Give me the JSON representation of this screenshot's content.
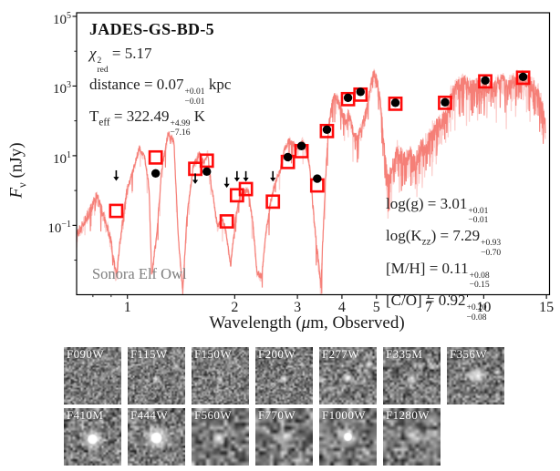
{
  "plot": {
    "title": "JADES-GS-BD-5",
    "model_label": "Sonora Elf Owl",
    "ylabel_parts": [
      {
        "t": "i",
        "s": "F"
      },
      {
        "t": "sub",
        "s": "ν"
      },
      {
        "t": "r",
        "s": " (nJy)"
      }
    ],
    "xlabel_parts": [
      {
        "t": "r",
        "s": "Wavelength ("
      },
      {
        "t": "i",
        "s": "μ"
      },
      {
        "t": "r",
        "s": "m, Observed)"
      }
    ],
    "left_lines": [
      [
        {
          "t": "i",
          "s": "χ"
        },
        {
          "t": "pm",
          "up": "2",
          "dn": "red"
        },
        {
          "t": "r",
          "s": " = 5.17"
        }
      ],
      [
        {
          "t": "r",
          "s": "distance = 0.07"
        },
        {
          "t": "pm",
          "up": "+0.01",
          "dn": "−0.01"
        },
        {
          "t": "r",
          "s": " kpc"
        }
      ],
      [
        {
          "t": "r",
          "s": "T"
        },
        {
          "t": "sub",
          "s": "eff"
        },
        {
          "t": "r",
          "s": " = 322.49"
        },
        {
          "t": "pm",
          "up": "+4.99",
          "dn": "−7.16"
        },
        {
          "t": "r",
          "s": " K"
        }
      ]
    ],
    "right_lines": [
      [
        {
          "t": "r",
          "s": "log(g) = 3.01"
        },
        {
          "t": "pm",
          "up": "+0.01",
          "dn": "−0.01"
        }
      ],
      [
        {
          "t": "r",
          "s": "log(K"
        },
        {
          "t": "sub",
          "s": "zz"
        },
        {
          "t": "r",
          "s": ") = 7.29"
        },
        {
          "t": "pm",
          "up": "+0.93",
          "dn": "−0.70"
        }
      ],
      [
        {
          "t": "r",
          "s": "[M/H] = 0.11"
        },
        {
          "t": "pm",
          "up": "+0.08",
          "dn": "−0.15"
        }
      ],
      [
        {
          "t": "r",
          "s": "[C/O] = 0.92"
        },
        {
          "t": "pm",
          "up": "+0.20",
          "dn": "−0.08"
        }
      ]
    ],
    "y_ticks": [
      {
        "exp": "5",
        "log": 5
      },
      {
        "exp": "3",
        "log": 3
      },
      {
        "exp": "1",
        "log": 1
      },
      {
        "exp": "−1",
        "log": -1
      }
    ]
  },
  "chart_data": {
    "type": "line",
    "title": "JADES-GS-BD-5",
    "xlabel": "Wavelength (μm, Observed)",
    "ylabel": "Fν (nJy)",
    "xscale": "log",
    "yscale": "log",
    "xlim": [
      0.72,
      15.3
    ],
    "ylim": [
      0.00102,
      127000
    ],
    "grid": false,
    "legend": false,
    "x_ticks": [
      {
        "v": 1,
        "label": "1"
      },
      {
        "v": 2,
        "label": "2"
      },
      {
        "v": 3,
        "label": "3"
      },
      {
        "v": 4,
        "label": "4"
      },
      {
        "v": 5,
        "label": "5"
      },
      {
        "v": 7,
        "label": "7"
      },
      {
        "v": 10,
        "label": "10"
      },
      {
        "v": 15,
        "label": "15"
      }
    ],
    "x_minor_ticks": [
      0.8,
      0.9,
      6,
      8,
      9
    ],
    "y_decades": [
      5,
      4,
      3,
      2,
      1,
      0,
      -1,
      -2
    ],
    "series": [
      {
        "name": "Sonora Elf Owl model spectrum",
        "kind": "line",
        "color": "#f4756e",
        "points": [
          [
            0.72,
            0.06
          ],
          [
            0.77,
            0.21
          ],
          [
            0.82,
            0.82
          ],
          [
            0.87,
            0.15
          ],
          [
            0.9,
            0.04
          ],
          [
            0.93,
            0.004
          ],
          [
            0.96,
            0.074
          ],
          [
            1.0,
            1.3
          ],
          [
            1.05,
            6.4
          ],
          [
            1.08,
            19
          ],
          [
            1.12,
            9.1
          ],
          [
            1.15,
            1.3
          ],
          [
            1.17,
            0.004
          ],
          [
            1.21,
            0.074
          ],
          [
            1.25,
            5.0
          ],
          [
            1.3,
            49
          ],
          [
            1.35,
            30
          ],
          [
            1.39,
            0.045
          ],
          [
            1.43,
            0.0014
          ],
          [
            1.47,
            0.21
          ],
          [
            1.53,
            5.6
          ],
          [
            1.59,
            12
          ],
          [
            1.64,
            7.2
          ],
          [
            1.68,
            13
          ],
          [
            1.72,
            1.5
          ],
          [
            1.79,
            0.1
          ],
          [
            1.84,
            0.18
          ],
          [
            1.89,
            0.074
          ],
          [
            1.95,
            0.008
          ],
          [
            2.01,
            0.18
          ],
          [
            2.07,
            0.77
          ],
          [
            2.13,
            1.0
          ],
          [
            2.18,
            1.2
          ],
          [
            2.25,
            0.13
          ],
          [
            2.31,
            0.005
          ],
          [
            2.38,
            0.0036
          ],
          [
            2.45,
            0.074
          ],
          [
            2.53,
            0.61
          ],
          [
            2.6,
            2.0
          ],
          [
            2.68,
            3.7
          ],
          [
            2.76,
            17
          ],
          [
            2.84,
            30
          ],
          [
            2.93,
            23
          ],
          [
            3.01,
            17
          ],
          [
            3.1,
            30
          ],
          [
            3.18,
            17
          ],
          [
            3.25,
            5.0
          ],
          [
            3.33,
            0.25
          ],
          [
            3.41,
            0.022
          ],
          [
            3.49,
            0.002
          ],
          [
            3.55,
            0.13
          ],
          [
            3.62,
            9.1
          ],
          [
            3.68,
            102
          ],
          [
            3.75,
            340
          ],
          [
            3.81,
            620
          ],
          [
            3.9,
            460
          ],
          [
            4.0,
            186
          ],
          [
            4.09,
            130
          ],
          [
            4.19,
            186
          ],
          [
            4.29,
            63
          ],
          [
            4.39,
            39
          ],
          [
            4.47,
            56
          ],
          [
            4.57,
            102
          ],
          [
            4.68,
            210
          ],
          [
            4.79,
            950
          ],
          [
            4.91,
            2980
          ],
          [
            5.03,
            1445
          ],
          [
            5.15,
            284
          ],
          [
            5.27,
            14
          ],
          [
            5.39,
            2.3
          ],
          [
            5.59,
            7.6
          ],
          [
            5.72,
            19
          ],
          [
            6.03,
            9.1
          ],
          [
            6.21,
            14
          ],
          [
            6.4,
            7.6
          ],
          [
            6.59,
            19
          ],
          [
            6.99,
            34
          ],
          [
            7.19,
            63
          ],
          [
            7.63,
            130
          ],
          [
            7.86,
            186
          ],
          [
            8.09,
            700
          ],
          [
            8.33,
            1135
          ],
          [
            8.58,
            1445
          ],
          [
            8.84,
            1630
          ],
          [
            9.16,
            1135
          ],
          [
            9.48,
            1535
          ],
          [
            9.83,
            1070
          ],
          [
            10.2,
            1445
          ],
          [
            10.5,
            1007
          ],
          [
            10.9,
            1445
          ],
          [
            11.3,
            1950
          ],
          [
            11.7,
            1280
          ],
          [
            12.1,
            1730
          ],
          [
            12.6,
            2340
          ],
          [
            13.0,
            1838
          ],
          [
            13.5,
            1535
          ],
          [
            14.0,
            1135
          ],
          [
            14.5,
            551
          ],
          [
            14.9,
            96
          ]
        ]
      },
      {
        "name": "Model photometry",
        "kind": "scatter",
        "marker": "open-square",
        "color": "#ff0a0a",
        "points": [
          [
            0.93,
            0.26
          ],
          [
            1.2,
            8.9
          ],
          [
            1.55,
            4.2
          ],
          [
            1.67,
            7.2
          ],
          [
            1.9,
            0.13
          ],
          [
            2.03,
            0.73
          ],
          [
            2.15,
            1.1
          ],
          [
            2.56,
            0.48
          ],
          [
            2.82,
            6.6
          ],
          [
            3.08,
            13.5
          ],
          [
            3.41,
            1.4
          ],
          [
            3.63,
            51
          ],
          [
            4.16,
            420
          ],
          [
            4.51,
            567
          ],
          [
            5.65,
            310
          ],
          [
            7.79,
            330
          ],
          [
            10.1,
            1360
          ],
          [
            12.9,
            1730
          ]
        ]
      },
      {
        "name": "Observed photometry",
        "kind": "scatter",
        "marker": "filled-circle",
        "color": "#000000",
        "points": [
          [
            1.2,
            3.1
          ],
          [
            1.67,
            3.5
          ],
          [
            2.82,
            9.1
          ],
          [
            3.08,
            19
          ],
          [
            3.41,
            2.2
          ],
          [
            3.63,
            56
          ],
          [
            4.16,
            459
          ],
          [
            4.51,
            679
          ],
          [
            5.65,
            330
          ],
          [
            7.79,
            340
          ],
          [
            10.1,
            1445
          ],
          [
            12.9,
            1838
          ]
        ]
      },
      {
        "name": "Upper limits",
        "kind": "scatter",
        "marker": "down-arrow",
        "color": "#000000",
        "points": [
          [
            0.93,
            1.9
          ],
          [
            1.55,
            1.55
          ],
          [
            1.9,
            1.2
          ],
          [
            2.03,
            1.8
          ],
          [
            2.15,
            1.8
          ],
          [
            2.56,
            1.8
          ]
        ]
      }
    ],
    "noise_regions": [
      {
        "upto": 1.0,
        "amp": 0.22,
        "p": 0.05,
        "depth": 0.6
      },
      {
        "upto": 3.3,
        "amp": 0.13,
        "p": 0.04,
        "depth": 0.7
      },
      {
        "upto": 3.95,
        "amp": 0.2,
        "p": 0.08,
        "depth": 0.9
      },
      {
        "upto": 5.2,
        "amp": 0.25,
        "p": 0.1,
        "depth": 0.7
      },
      {
        "upto": 7.5,
        "amp": 0.45,
        "p": 0.2,
        "depth": 0.8
      },
      {
        "upto": 16,
        "amp": 0.35,
        "p": 0.18,
        "depth": 0.9
      }
    ]
  },
  "cutouts": {
    "rows": [
      [
        {
          "label": "F090W",
          "grain": 34,
          "sources": [
            [
              0.88,
              0.4,
              1.6,
              0.5
            ],
            [
              0.13,
              0.78,
              1.4,
              0.35
            ]
          ]
        },
        {
          "label": "F115W",
          "grain": 34,
          "sources": [
            [
              0.5,
              0.56,
              2.0,
              0.85
            ],
            [
              0.84,
              0.33,
              1.7,
              0.75
            ],
            [
              0.22,
              0.6,
              1.3,
              0.3
            ]
          ]
        },
        {
          "label": "F150W",
          "grain": 34,
          "sources": [
            [
              0.49,
              0.56,
              2.1,
              0.8
            ],
            [
              0.82,
              0.33,
              1.7,
              0.6
            ]
          ]
        },
        {
          "label": "F200W",
          "grain": 34,
          "sources": [
            [
              0.5,
              0.55,
              2.2,
              0.9
            ],
            [
              0.83,
              0.32,
              1.7,
              0.6
            ]
          ]
        },
        {
          "label": "F277W",
          "grain": 26,
          "sources": [
            [
              0.5,
              0.54,
              2.8,
              1.0
            ],
            [
              0.86,
              0.3,
              2.2,
              0.9
            ],
            [
              0.2,
              0.74,
              1.8,
              0.45
            ]
          ]
        },
        {
          "label": "F335M",
          "grain": 26,
          "sources": [
            [
              0.5,
              0.54,
              2.6,
              0.9
            ],
            [
              0.86,
              0.33,
              1.8,
              0.55
            ]
          ]
        },
        {
          "label": "F356W",
          "grain": 26,
          "sources": [
            [
              0.54,
              0.5,
              4.2,
              1.0
            ],
            [
              0.88,
              0.43,
              2.0,
              0.8
            ]
          ]
        }
      ],
      [
        {
          "label": "F410M",
          "grain": 26,
          "sources": [
            [
              0.5,
              0.54,
              6.2,
              1.0
            ]
          ]
        },
        {
          "label": "F444W",
          "grain": 26,
          "sources": [
            [
              0.5,
              0.52,
              7.0,
              1.0
            ],
            [
              0.86,
              0.38,
              1.5,
              0.4
            ]
          ]
        },
        {
          "label": "F560W",
          "grain": 16,
          "sources": [
            [
              0.48,
              0.52,
              3.4,
              0.95
            ]
          ]
        },
        {
          "label": "F770W",
          "grain": 16,
          "sources": [
            [
              0.52,
              0.5,
              4.2,
              0.8
            ]
          ]
        },
        {
          "label": "F1000W",
          "grain": 16,
          "sources": [
            [
              0.5,
              0.5,
              5.2,
              0.95
            ]
          ]
        },
        {
          "label": "F1280W",
          "grain": 16,
          "sources": [
            [
              0.52,
              0.47,
              4.8,
              0.8
            ]
          ]
        }
      ]
    ]
  }
}
